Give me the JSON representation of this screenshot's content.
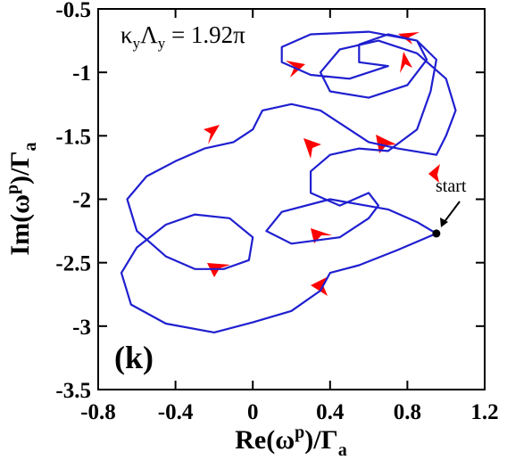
{
  "chart_data": {
    "type": "line",
    "annotation": [
      "κ",
      "y",
      "Λ",
      "y",
      " = 1.92π"
    ],
    "panel_label": "(k)",
    "start_label": "start",
    "x_label": [
      "Re(ω",
      "p",
      ")/Γ",
      "a"
    ],
    "y_label": [
      "Im(ω",
      "p",
      ")/Γ",
      "a"
    ],
    "color": "#1f1fd0",
    "xlim": [
      -0.8,
      1.2
    ],
    "ylim": [
      -3.5,
      -0.5
    ],
    "xticks": [
      -0.8,
      -0.4,
      0,
      0.4,
      0.8,
      1.2
    ],
    "yticks": [
      -3.5,
      -3,
      -2.5,
      -2,
      -1.5,
      -1,
      -0.5
    ],
    "x": [
      0.95,
      0.75,
      0.55,
      0.4,
      0.35,
      0.2,
      0.0,
      -0.2,
      -0.45,
      -0.63,
      -0.68,
      -0.6,
      -0.45,
      -0.3,
      -0.12,
      0.0,
      -0.02,
      -0.15,
      -0.3,
      -0.45,
      -0.6,
      -0.65,
      -0.55,
      -0.4,
      -0.25,
      -0.1,
      0.0,
      0.05,
      0.2,
      0.35,
      0.5,
      0.6,
      0.75,
      0.95,
      1.0,
      1.05,
      1.0,
      0.85,
      0.65,
      0.45,
      0.35,
      0.4,
      0.6,
      0.8,
      0.9,
      0.85,
      0.7,
      0.55,
      0.55,
      0.7,
      0.5,
      0.3,
      0.15,
      0.15,
      0.3,
      0.6,
      0.85,
      0.95,
      0.92,
      0.85,
      0.7,
      0.55,
      0.4,
      0.3,
      0.3,
      0.45,
      0.6,
      0.65,
      0.6,
      0.45,
      0.2,
      0.07,
      0.15,
      0.4,
      0.7,
      0.85,
      0.95
    ],
    "y": [
      -2.27,
      -2.4,
      -2.52,
      -2.58,
      -2.72,
      -2.88,
      -2.97,
      -3.05,
      -2.98,
      -2.83,
      -2.58,
      -2.38,
      -2.2,
      -2.12,
      -2.15,
      -2.3,
      -2.48,
      -2.55,
      -2.55,
      -2.45,
      -2.25,
      -2.0,
      -1.82,
      -1.7,
      -1.6,
      -1.55,
      -1.45,
      -1.3,
      -1.25,
      -1.3,
      -1.45,
      -1.55,
      -1.6,
      -1.65,
      -1.5,
      -1.3,
      -1.05,
      -0.85,
      -0.75,
      -0.82,
      -1.0,
      -1.15,
      -1.2,
      -1.1,
      -0.9,
      -0.75,
      -0.7,
      -0.78,
      -0.92,
      -0.95,
      -1.05,
      -1.02,
      -0.92,
      -0.8,
      -0.7,
      -0.68,
      -0.75,
      -0.9,
      -1.15,
      -1.45,
      -1.62,
      -1.6,
      -1.65,
      -1.78,
      -1.95,
      -2.05,
      -1.95,
      -2.05,
      -2.15,
      -2.3,
      -2.35,
      -2.25,
      -2.1,
      -2.0,
      -2.08,
      -2.18,
      -2.27
    ]
  }
}
